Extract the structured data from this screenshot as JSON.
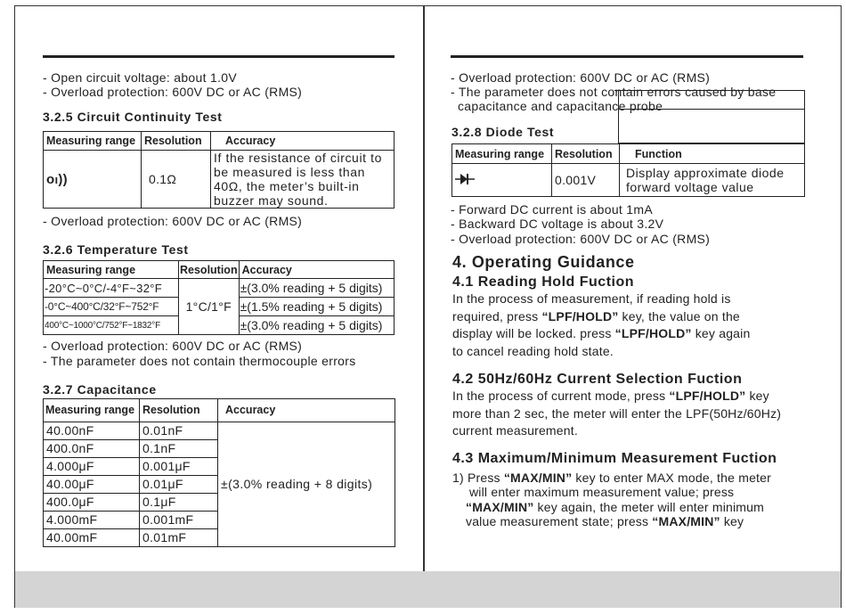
{
  "left_page": {
    "intro_lines": [
      "- Open circuit voltage: about 1.0V",
      "- Overload protection: 600V DC or AC (RMS)"
    ],
    "continuity": {
      "heading": "3.2.5 Circuit Continuity Test",
      "headers": [
        "Measuring range",
        "Resolution",
        "Accuracy"
      ],
      "icon": "continuity-buzzer-icon",
      "resolution": "0.1Ω",
      "accuracy_lines": [
        "If the resistance of circuit to",
        "be measured is less than",
        "40Ω, the meter’s built-in",
        "buzzer may sound."
      ],
      "note": "- Overload protection: 600V DC or AC (RMS)"
    },
    "temperature": {
      "heading": "3.2.6 Temperature Test",
      "headers": [
        "Measuring range",
        "Resolution",
        "Accuracy"
      ],
      "resolution": "1°C/1°F",
      "rows": [
        {
          "range": "-20°C~0°C/-4°F~32°F",
          "accuracy": "±(3.0% reading + 5 digits)"
        },
        {
          "range": "-0°C~400°C/32°F~752°F",
          "accuracy": "±(1.5% reading + 5 digits)"
        },
        {
          "range": "400°C~1000°C/752°F~1832°F",
          "accuracy": "±(3.0% reading + 5 digits)"
        }
      ],
      "notes": [
        "- Overload protection: 600V DC or AC (RMS)",
        "- The parameter does not contain thermocouple errors"
      ]
    },
    "capacitance": {
      "heading": "3.2.7 Capacitance",
      "headers": [
        "Measuring range",
        "Resolution",
        "Accuracy"
      ],
      "accuracy": "±(3.0% reading + 8 digits)",
      "rows": [
        {
          "range": "40.00nF",
          "resolution": "0.01nF"
        },
        {
          "range": "400.0nF",
          "resolution": "0.1nF"
        },
        {
          "range": "4.000μF",
          "resolution": "0.001μF"
        },
        {
          "range": "40.00μF",
          "resolution": "0.01μF"
        },
        {
          "range": "400.0μF",
          "resolution": "0.1μF"
        },
        {
          "range": "4.000mF",
          "resolution": "0.001mF"
        },
        {
          "range": "40.00mF",
          "resolution": "0.01mF"
        }
      ]
    }
  },
  "right_page": {
    "intro_lines": [
      "- Overload protection: 600V DC or AC (RMS)",
      "- The parameter does not contain errors caused by base",
      "capacitance and capacitance probe"
    ],
    "diode": {
      "heading": "3.2.8 Diode Test",
      "headers": [
        "Measuring range",
        "Resolution",
        "Function"
      ],
      "icon": "diode-icon",
      "resolution": "0.001V",
      "function_lines": [
        "Display approximate diode",
        "forward voltage value"
      ],
      "notes": [
        "- Forward DC current is about 1mA",
        "- Backward DC voltage is about 3.2V",
        "- Overload protection: 600V DC or AC (RMS)"
      ]
    },
    "operating": {
      "heading": "4. Operating Guidance",
      "s41": {
        "heading": "4.1 Reading Hold Fuction",
        "l1": "In the process of measurement, if reading hold is",
        "l2a": "required, press ",
        "key": "“LPF/HOLD”",
        "l2b": "  key, the value on the",
        "l3a": "display will be locked. press ",
        "l3b": " key again",
        "l4": "to cancel reading hold state."
      },
      "s42": {
        "heading": "4.2 50Hz/60Hz Current Selection Fuction",
        "l1a": "In the process of current mode, press ",
        "key": "“LPF/HOLD”",
        "l1b": " key",
        "l2": "more than 2 sec, the meter will enter the LPF(50Hz/60Hz)",
        "l3": "current measurement."
      },
      "s43": {
        "heading": "4.3 Maximum/Minimum Measurement Fuction",
        "key": "“MAX/MIN”",
        "l1a": "1) Press ",
        "l1b": " key to enter MAX mode, the meter",
        "l2": "will enter maximum measurement value; press",
        "l3b": " key again, the meter will enter minimum",
        "l4a": "value measurement state; press ",
        "l4b": " key"
      }
    }
  }
}
